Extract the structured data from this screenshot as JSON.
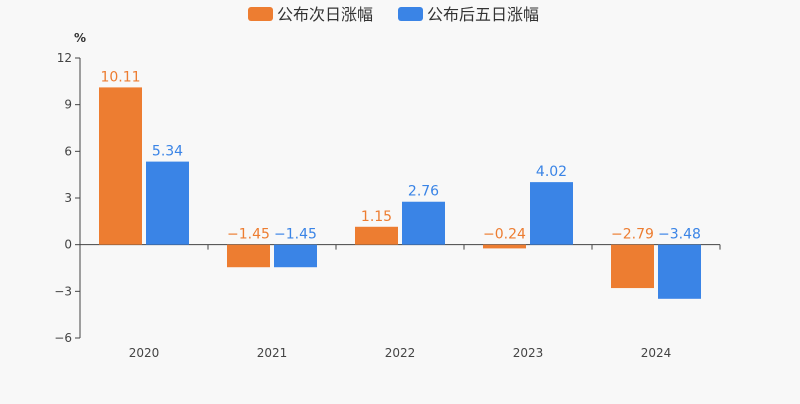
{
  "chart_data": {
    "type": "bar",
    "categories": [
      "2020",
      "2021",
      "2022",
      "2023",
      "2024"
    ],
    "series": [
      {
        "name": "公布次日涨幅",
        "values": [
          10.11,
          -1.45,
          1.15,
          -0.24,
          -2.79
        ],
        "labels": [
          "10.11",
          "−1.45",
          "1.15",
          "−0.24",
          "−2.79"
        ],
        "color": "#ed7d31"
      },
      {
        "name": "公布后五日涨幅",
        "values": [
          5.34,
          -1.45,
          2.76,
          4.02,
          -3.48
        ],
        "labels": [
          "5.34",
          "−1.45",
          "2.76",
          "4.02",
          "−3.48"
        ],
        "color": "#3a84e6"
      }
    ],
    "ylabel": "%",
    "ylim": [
      -6,
      12
    ],
    "yticks": [
      12,
      9,
      6,
      3,
      0,
      -3,
      -6
    ],
    "ytick_labels": [
      "12",
      "9",
      "6",
      "3",
      "0",
      "−3",
      "−6"
    ],
    "grid": false,
    "legend_position": "top-center"
  }
}
